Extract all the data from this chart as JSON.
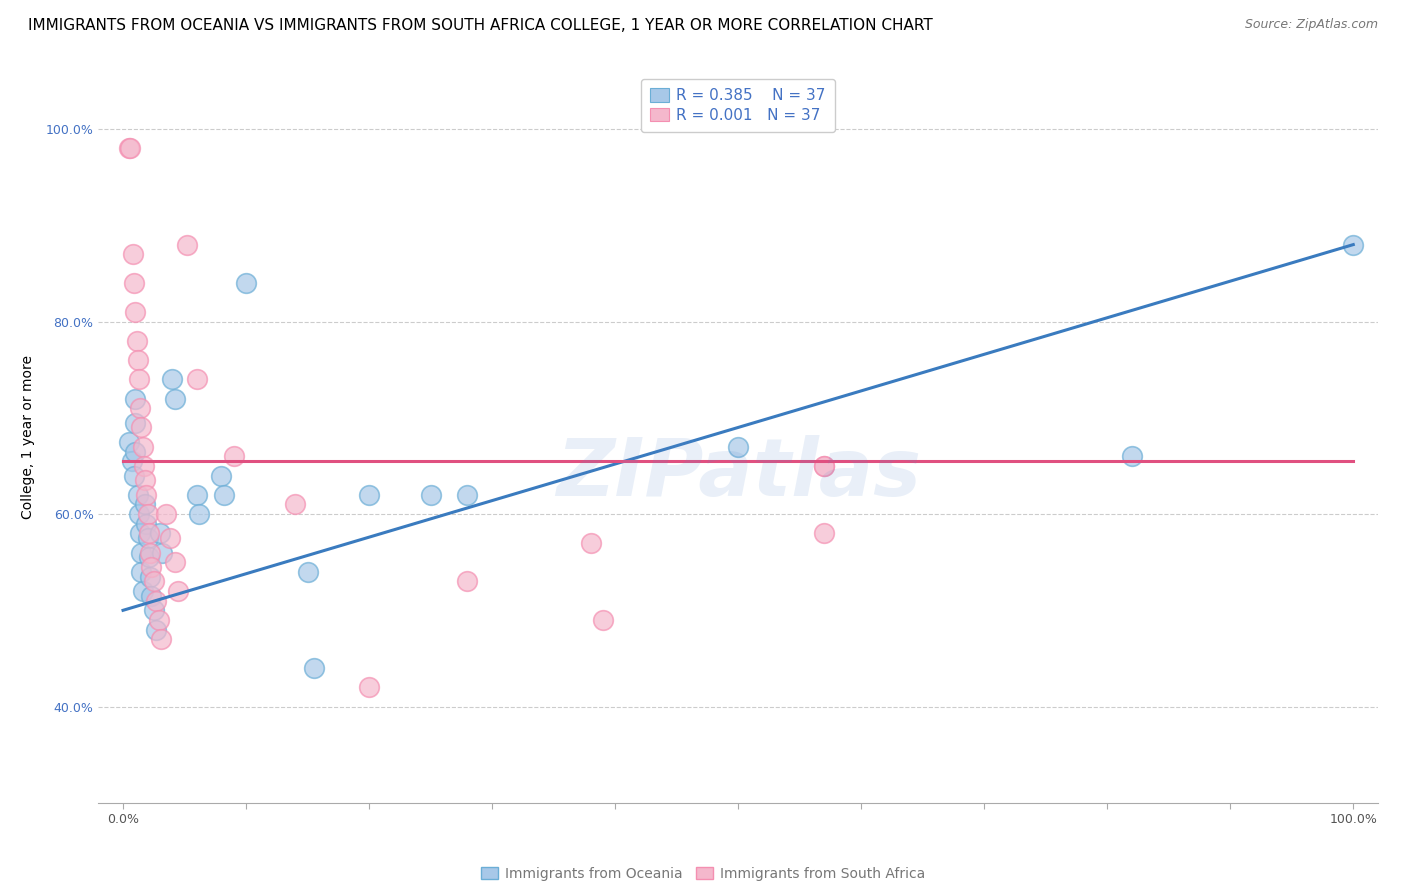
{
  "title": "IMMIGRANTS FROM OCEANIA VS IMMIGRANTS FROM SOUTH AFRICA COLLEGE, 1 YEAR OR MORE CORRELATION CHART",
  "source": "Source: ZipAtlas.com",
  "ylabel": "College, 1 year or more",
  "xaxis_label_left": "Immigrants from Oceania",
  "xaxis_label_right": "Immigrants from South Africa",
  "watermark": "ZIPatlas",
  "legend_blue_r": "R = 0.385",
  "legend_blue_n": "N = 37",
  "legend_pink_r": "R = 0.001",
  "legend_pink_n": "N = 37",
  "blue_color": "#a8c8e8",
  "pink_color": "#f4b8cc",
  "blue_edge_color": "#6baed6",
  "pink_edge_color": "#f48fb1",
  "blue_line_color": "#3a7bbf",
  "pink_line_color": "#e05080",
  "blue_scatter": [
    [
      0.005,
      0.675
    ],
    [
      0.007,
      0.655
    ],
    [
      0.009,
      0.64
    ],
    [
      0.01,
      0.72
    ],
    [
      0.01,
      0.695
    ],
    [
      0.01,
      0.665
    ],
    [
      0.012,
      0.62
    ],
    [
      0.013,
      0.6
    ],
    [
      0.014,
      0.58
    ],
    [
      0.015,
      0.56
    ],
    [
      0.015,
      0.54
    ],
    [
      0.016,
      0.52
    ],
    [
      0.018,
      0.61
    ],
    [
      0.019,
      0.59
    ],
    [
      0.02,
      0.575
    ],
    [
      0.021,
      0.555
    ],
    [
      0.022,
      0.535
    ],
    [
      0.023,
      0.515
    ],
    [
      0.025,
      0.5
    ],
    [
      0.027,
      0.48
    ],
    [
      0.03,
      0.58
    ],
    [
      0.032,
      0.56
    ],
    [
      0.04,
      0.74
    ],
    [
      0.042,
      0.72
    ],
    [
      0.06,
      0.62
    ],
    [
      0.062,
      0.6
    ],
    [
      0.08,
      0.64
    ],
    [
      0.082,
      0.62
    ],
    [
      0.1,
      0.84
    ],
    [
      0.15,
      0.54
    ],
    [
      0.155,
      0.44
    ],
    [
      0.2,
      0.62
    ],
    [
      0.25,
      0.62
    ],
    [
      0.28,
      0.62
    ],
    [
      0.5,
      0.67
    ],
    [
      0.82,
      0.66
    ],
    [
      1.0,
      0.88
    ]
  ],
  "pink_scatter": [
    [
      0.005,
      0.98
    ],
    [
      0.006,
      0.98
    ],
    [
      0.008,
      0.87
    ],
    [
      0.009,
      0.84
    ],
    [
      0.01,
      0.81
    ],
    [
      0.011,
      0.78
    ],
    [
      0.012,
      0.76
    ],
    [
      0.013,
      0.74
    ],
    [
      0.014,
      0.71
    ],
    [
      0.015,
      0.69
    ],
    [
      0.016,
      0.67
    ],
    [
      0.017,
      0.65
    ],
    [
      0.018,
      0.635
    ],
    [
      0.019,
      0.62
    ],
    [
      0.02,
      0.6
    ],
    [
      0.021,
      0.58
    ],
    [
      0.022,
      0.56
    ],
    [
      0.023,
      0.545
    ],
    [
      0.025,
      0.53
    ],
    [
      0.027,
      0.51
    ],
    [
      0.029,
      0.49
    ],
    [
      0.031,
      0.47
    ],
    [
      0.035,
      0.6
    ],
    [
      0.038,
      0.575
    ],
    [
      0.042,
      0.55
    ],
    [
      0.045,
      0.52
    ],
    [
      0.052,
      0.88
    ],
    [
      0.06,
      0.74
    ],
    [
      0.09,
      0.66
    ],
    [
      0.14,
      0.61
    ],
    [
      0.2,
      0.42
    ],
    [
      0.28,
      0.53
    ],
    [
      0.38,
      0.57
    ],
    [
      0.39,
      0.49
    ],
    [
      0.57,
      0.58
    ],
    [
      0.57,
      0.65
    ],
    [
      0.57,
      0.65
    ]
  ],
  "blue_line": [
    [
      0.0,
      0.5
    ],
    [
      1.0,
      0.88
    ]
  ],
  "pink_line": [
    [
      0.0,
      0.655
    ],
    [
      1.0,
      0.655
    ]
  ],
  "xlim": [
    -0.02,
    1.02
  ],
  "ylim": [
    0.3,
    1.06
  ],
  "yticks": [
    0.4,
    0.6,
    0.8,
    1.0
  ],
  "ytick_labels": [
    "40.0%",
    "60.0%",
    "80.0%",
    "100.0%"
  ],
  "xtick_positions": [
    0.0,
    0.1,
    0.2,
    0.3,
    0.4,
    0.5,
    0.6,
    0.7,
    0.8,
    0.9,
    1.0
  ],
  "xtick_show": [
    "0.0%",
    "",
    "",
    "",
    "",
    "",
    "",
    "",
    "",
    "",
    "100.0%"
  ],
  "title_fontsize": 11,
  "source_fontsize": 9,
  "label_fontsize": 10,
  "tick_fontsize": 9,
  "legend_fontsize": 11
}
